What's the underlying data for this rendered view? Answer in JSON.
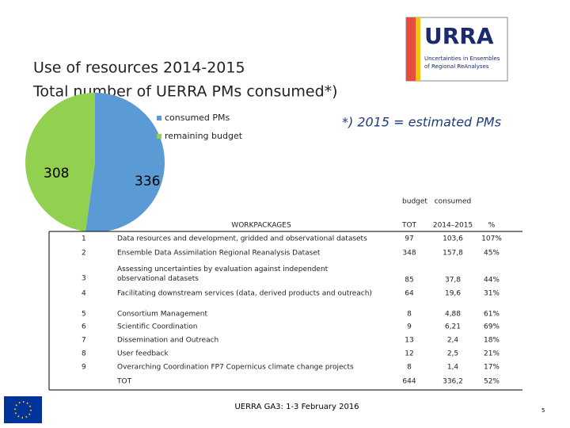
{
  "title_lines": [
    "Use of resources 2014-2015",
    "Total number of UERRA PMs consumed*)"
  ],
  "note": "*) 2015  = estimated PMs",
  "logo": {
    "name": "URRA",
    "lines": [
      "Uncertainties in Ensembles",
      "of Regional ReAnalyses"
    ]
  },
  "chart_data": {
    "type": "pie",
    "categories": [
      "consumed PMs",
      "remaining budget"
    ],
    "values": [
      336,
      308
    ],
    "colors": [
      "#5b9bd5",
      "#92d050"
    ]
  },
  "table": {
    "group_headers": [
      "budget",
      "consumed"
    ],
    "headers": [
      "WORKPACKAGES",
      "TOT",
      "2014–2015",
      "%"
    ],
    "rows": [
      [
        "1",
        "Data resources and development, gridded and observational datasets",
        "97",
        "103,6",
        "107%"
      ],
      [
        "2",
        "Ensemble Data Assimilation Regional Reanalysis Dataset",
        "348",
        "157,8",
        "45%"
      ],
      [
        "3",
        "Assessing uncertainties by evaluation against independent observational datasets",
        "85",
        "37,8",
        "44%"
      ],
      [
        "4",
        "Facilitating downstream services (data, derived products and outreach)",
        "64",
        "19,6",
        "31%"
      ],
      [
        "5",
        "Consortium Management",
        "8",
        "4,88",
        "61%"
      ],
      [
        "6",
        "Scientific Coordination",
        "9",
        "6,21",
        "69%"
      ],
      [
        "7",
        "Dissemination and Outreach",
        "13",
        "2,4",
        "18%"
      ],
      [
        "8",
        "User feedback",
        "12",
        "2,5",
        "21%"
      ],
      [
        "9",
        "Overarching Coordination FP7 Copernicus climate change projects",
        "8",
        "1,4",
        "17%"
      ]
    ],
    "total": [
      "TOT",
      "644",
      "336,2",
      "52%"
    ]
  },
  "footer": "UERRA GA3: 1-3 February 2016",
  "page_number": "5"
}
